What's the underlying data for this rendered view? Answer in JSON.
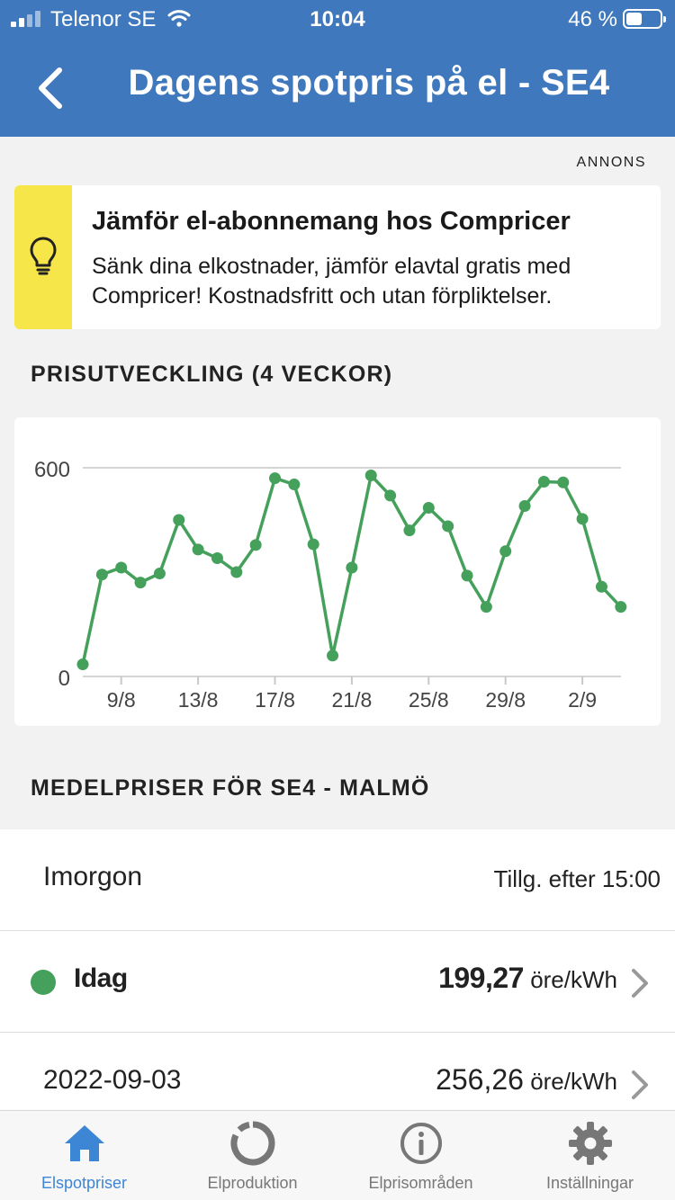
{
  "status_bar": {
    "carrier": "Telenor SE",
    "time": "10:04",
    "battery_percent": "46 %",
    "battery_level": 0.46
  },
  "nav": {
    "title": "Dagens spotpris på el - SE4",
    "back_icon": "chevron-left-icon"
  },
  "ad": {
    "label": "ANNONS",
    "title": "Jämför el-abonnemang hos Compricer",
    "text": "Sänk dina elkostnader, jämför elavtal gratis med Compricer! Kostnadsfritt och utan förpliktelser.",
    "icon": "lightbulb-icon",
    "accent_color": "#f7e64a"
  },
  "chart_section": {
    "heading": "PRISUTVECKLING (4 VECKOR)"
  },
  "chart_data": {
    "type": "line",
    "title": "",
    "xlabel": "",
    "ylabel": "",
    "ylim": [
      0,
      600
    ],
    "y_ticks": [
      "0",
      "600"
    ],
    "x_tick_labels": [
      "9/8",
      "13/8",
      "17/8",
      "21/8",
      "25/8",
      "29/8",
      "2/9"
    ],
    "x_tick_days": [
      2,
      6,
      10,
      14,
      18,
      22,
      26
    ],
    "grid": true,
    "line_color": "#44a05a",
    "series": [
      {
        "x": [
          "7/8",
          "8/8",
          "9/8",
          "10/8",
          "11/8",
          "12/8",
          "13/8",
          "14/8",
          "15/8",
          "16/8",
          "17/8",
          "18/8",
          "19/8",
          "20/8",
          "21/8",
          "22/8",
          "23/8",
          "24/8",
          "25/8",
          "26/8",
          "27/8",
          "28/8",
          "29/8",
          "30/8",
          "31/8",
          "1/9",
          "2/9",
          "3/9",
          "4/9"
        ],
        "values": [
          35,
          293,
          313,
          270,
          296,
          450,
          365,
          340,
          300,
          378,
          570,
          552,
          380,
          60,
          313,
          578,
          520,
          420,
          485,
          432,
          290,
          200,
          360,
          490,
          560,
          558,
          453,
          258,
          200
        ]
      }
    ]
  },
  "averages_section": {
    "heading": "MEDELPRISER FÖR SE4 - MALMÖ"
  },
  "rows": [
    {
      "label": "Imorgon",
      "note": "Tillg. efter 15:00"
    },
    {
      "label": "Idag",
      "value": "199,27",
      "unit": "öre/kWh",
      "dot_color": "#44a05a"
    },
    {
      "label": "2022-09-03",
      "value": "256,26",
      "unit": "öre/kWh"
    }
  ],
  "tabs": [
    {
      "label": "Elspotpriser",
      "icon": "home-icon",
      "active": true
    },
    {
      "label": "Elproduktion",
      "icon": "donut-icon",
      "active": false
    },
    {
      "label": "Elprisområden",
      "icon": "info-icon",
      "active": false
    },
    {
      "label": "Inställningar",
      "icon": "gear-icon",
      "active": false
    }
  ],
  "colors": {
    "nav_bar": "#3f78bc",
    "active_tab": "#3d86d6",
    "inactive_tab": "#777777"
  }
}
